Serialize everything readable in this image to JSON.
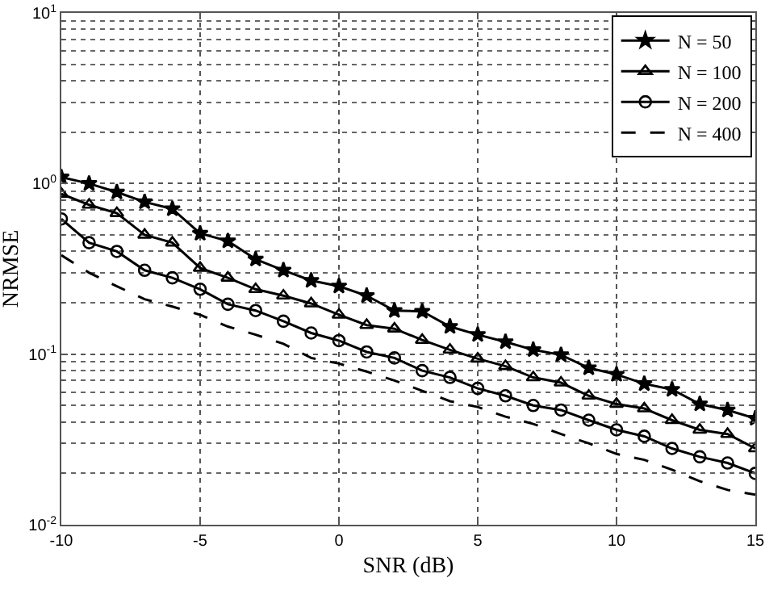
{
  "chart_data": {
    "type": "line",
    "xlabel": "SNR (dB)",
    "ylabel": "NRMSE",
    "log": "y",
    "x": [
      -10,
      -9,
      -8,
      -7,
      -6,
      -5,
      -4,
      -3,
      -2,
      -1,
      0,
      1,
      2,
      3,
      4,
      5,
      6,
      7,
      8,
      9,
      10,
      11,
      12,
      13,
      14,
      15
    ],
    "xlim": [
      -10,
      15
    ],
    "xticks": [
      -10,
      -5,
      0,
      5,
      10,
      15
    ],
    "ylim": [
      0.01,
      10
    ],
    "yticks": [
      {
        "value": 0.01,
        "label": "10$^{-2}$"
      },
      {
        "value": 0.1,
        "label": "10$^{-1}$"
      },
      {
        "value": 1,
        "label": "10$^{0}$"
      },
      {
        "value": 10,
        "label": "10$^{1}$"
      }
    ],
    "grid": true,
    "legend": "top right",
    "series": [
      {
        "name": "N = 50",
        "color": "#000000",
        "marker": "star",
        "line_style": "solid",
        "values": [
          1.09,
          1.0,
          0.89,
          0.78,
          0.71,
          0.51,
          0.46,
          0.36,
          0.31,
          0.27,
          0.25,
          0.22,
          0.18,
          0.178,
          0.145,
          0.13,
          0.118,
          0.106,
          0.099,
          0.083,
          0.076,
          0.067,
          0.062,
          0.051,
          0.047,
          0.042
        ]
      },
      {
        "name": "N = 100",
        "color": "#000000",
        "marker": "triangle",
        "line_style": "solid",
        "values": [
          0.87,
          0.75,
          0.67,
          0.5,
          0.45,
          0.32,
          0.28,
          0.24,
          0.22,
          0.198,
          0.17,
          0.148,
          0.141,
          0.121,
          0.106,
          0.094,
          0.085,
          0.073,
          0.068,
          0.057,
          0.051,
          0.048,
          0.041,
          0.036,
          0.034,
          0.028
        ]
      },
      {
        "name": "N = 200",
        "color": "#000000",
        "marker": "circle",
        "line_style": "solid",
        "values": [
          0.62,
          0.45,
          0.4,
          0.31,
          0.28,
          0.24,
          0.196,
          0.18,
          0.156,
          0.133,
          0.12,
          0.103,
          0.095,
          0.08,
          0.073,
          0.063,
          0.057,
          0.05,
          0.047,
          0.041,
          0.036,
          0.033,
          0.028,
          0.025,
          0.023,
          0.02
        ]
      },
      {
        "name": "N = 400",
        "color": "#000000",
        "marker": "none",
        "line_style": "dashed",
        "values": [
          0.38,
          0.3,
          0.25,
          0.21,
          0.19,
          0.17,
          0.145,
          0.13,
          0.115,
          0.095,
          0.088,
          0.079,
          0.07,
          0.061,
          0.053,
          0.049,
          0.043,
          0.039,
          0.034,
          0.03,
          0.026,
          0.024,
          0.021,
          0.018,
          0.016,
          0.015
        ]
      }
    ]
  }
}
